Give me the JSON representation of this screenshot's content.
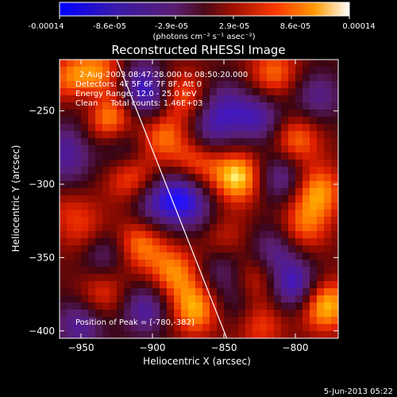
{
  "colorbar": {
    "ticks": [
      "-0.00014",
      "-8.6e-05",
      "-2.9e-05",
      "2.9e-05",
      "8.6e-05",
      "0.00014"
    ],
    "unit_label": "(photons cm⁻² s⁻¹ asec⁻²)"
  },
  "annotations": {
    "time_range": "2-Aug-2003 08:47:28.000 to 08:50:20.000",
    "detectors": "Detectors: 4F 5F 6F 7F 8F, Att 0",
    "energy": "Energy Range: 12.0 - 25.0 keV",
    "clean": "Clean     Total counts: 1.46E+03",
    "peak": "Position of Peak = [-780,-382]"
  },
  "footer": {
    "timestamp": "5-Jun-2013 05:22"
  },
  "chart_data": {
    "type": "heatmap",
    "title": "Reconstructed RHESSI Image",
    "xlabel": "Heliocentric X (arcsec)",
    "ylabel": "Heliocentric Y (arcsec)",
    "xlim": [
      -965,
      -770
    ],
    "ylim": [
      -405,
      -215
    ],
    "xticks": [
      -950,
      -900,
      -850,
      -800
    ],
    "yticks": [
      -250,
      -300,
      -350,
      -400
    ],
    "xtick_labels": [
      "−950",
      "−900",
      "−850",
      "−800"
    ],
    "ytick_labels": [
      "−250",
      "−300",
      "−350",
      "−400"
    ],
    "value_range": [
      -0.00014,
      0.00014
    ],
    "colormap": [
      "#0000ff",
      "#4a1a8a",
      "#552288",
      "#7a0a10",
      "#ff2000",
      "#ff9a00",
      "#ffff70"
    ],
    "limb_line": [
      [
        -925,
        -215
      ],
      [
        -848,
        -405
      ]
    ],
    "peak": [
      -780,
      -382
    ],
    "blobs": [
      {
        "x": -955,
        "y": -230,
        "v": 0.8
      },
      {
        "x": -930,
        "y": -255,
        "v": 0.95
      },
      {
        "x": -935,
        "y": -225,
        "v": 0.7
      },
      {
        "x": -915,
        "y": -295,
        "v": 0.7
      },
      {
        "x": -895,
        "y": -265,
        "v": 0.75
      },
      {
        "x": -880,
        "y": -240,
        "v": 0.7
      },
      {
        "x": -870,
        "y": -285,
        "v": 0.7
      },
      {
        "x": -840,
        "y": -295,
        "v": 1.0
      },
      {
        "x": -815,
        "y": -225,
        "v": 0.65
      },
      {
        "x": -800,
        "y": -270,
        "v": 0.7
      },
      {
        "x": -785,
        "y": -305,
        "v": 0.8
      },
      {
        "x": -960,
        "y": -310,
        "v": 0.55
      },
      {
        "x": -945,
        "y": -335,
        "v": 0.6
      },
      {
        "x": -910,
        "y": -340,
        "v": 0.75
      },
      {
        "x": -885,
        "y": -360,
        "v": 0.7
      },
      {
        "x": -850,
        "y": -340,
        "v": 0.55
      },
      {
        "x": -830,
        "y": -365,
        "v": 0.65
      },
      {
        "x": -795,
        "y": -330,
        "v": 0.6
      },
      {
        "x": -780,
        "y": -382,
        "v": 1.0
      },
      {
        "x": -870,
        "y": -385,
        "v": 0.85
      },
      {
        "x": -935,
        "y": -375,
        "v": 0.55
      },
      {
        "x": -825,
        "y": -395,
        "v": 0.55
      },
      {
        "x": -960,
        "y": -275,
        "v": -0.55
      },
      {
        "x": -945,
        "y": -240,
        "v": -0.6
      },
      {
        "x": -910,
        "y": -230,
        "v": -0.6
      },
      {
        "x": -900,
        "y": -245,
        "v": -0.7
      },
      {
        "x": -920,
        "y": -275,
        "v": -0.6
      },
      {
        "x": -880,
        "y": -305,
        "v": -0.75
      },
      {
        "x": -860,
        "y": -265,
        "v": -0.6
      },
      {
        "x": -850,
        "y": -245,
        "v": -0.5
      },
      {
        "x": -825,
        "y": -255,
        "v": -0.7
      },
      {
        "x": -810,
        "y": -295,
        "v": -0.7
      },
      {
        "x": -785,
        "y": -240,
        "v": -0.55
      },
      {
        "x": -935,
        "y": -345,
        "v": -0.75
      },
      {
        "x": -900,
        "y": -315,
        "v": -0.6
      },
      {
        "x": -905,
        "y": -385,
        "v": -0.7
      },
      {
        "x": -850,
        "y": -355,
        "v": -0.65
      },
      {
        "x": -815,
        "y": -345,
        "v": -0.6
      },
      {
        "x": -800,
        "y": -370,
        "v": -0.9
      },
      {
        "x": -960,
        "y": -300,
        "v": -0.5
      },
      {
        "x": -950,
        "y": -395,
        "v": -0.65
      },
      {
        "x": -870,
        "y": -320,
        "v": -0.4
      },
      {
        "x": -840,
        "y": -380,
        "v": -0.5
      }
    ]
  }
}
